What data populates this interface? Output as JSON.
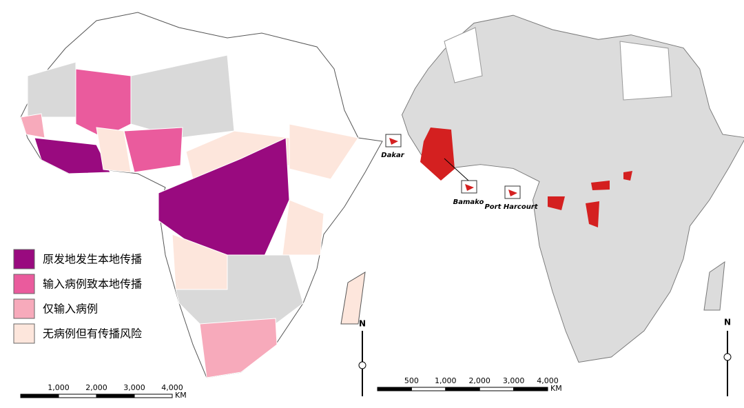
{
  "left_map": {
    "legend": [
      {
        "label": "原发地发生本地传播",
        "color": "#990a7f"
      },
      {
        "label": "输入病例致本地传播",
        "color": "#ea5b9d"
      },
      {
        "label": "仅输入病例",
        "color": "#f7aabb"
      },
      {
        "label": "无病例但有传播风险",
        "color": "#fde6dc"
      }
    ],
    "scale_bar": {
      "ticks": [
        "1,000",
        "2,000",
        "3,000",
        "4,000"
      ],
      "unit": "KM"
    },
    "north": "N"
  },
  "right_map": {
    "insets": [
      "Dakar",
      "Bamako",
      "Port Harcourt"
    ],
    "scale_bar": {
      "ticks": [
        "500",
        "1,000",
        "2,000",
        "3,000",
        "4,000"
      ],
      "unit": "KM"
    },
    "north": "N"
  }
}
